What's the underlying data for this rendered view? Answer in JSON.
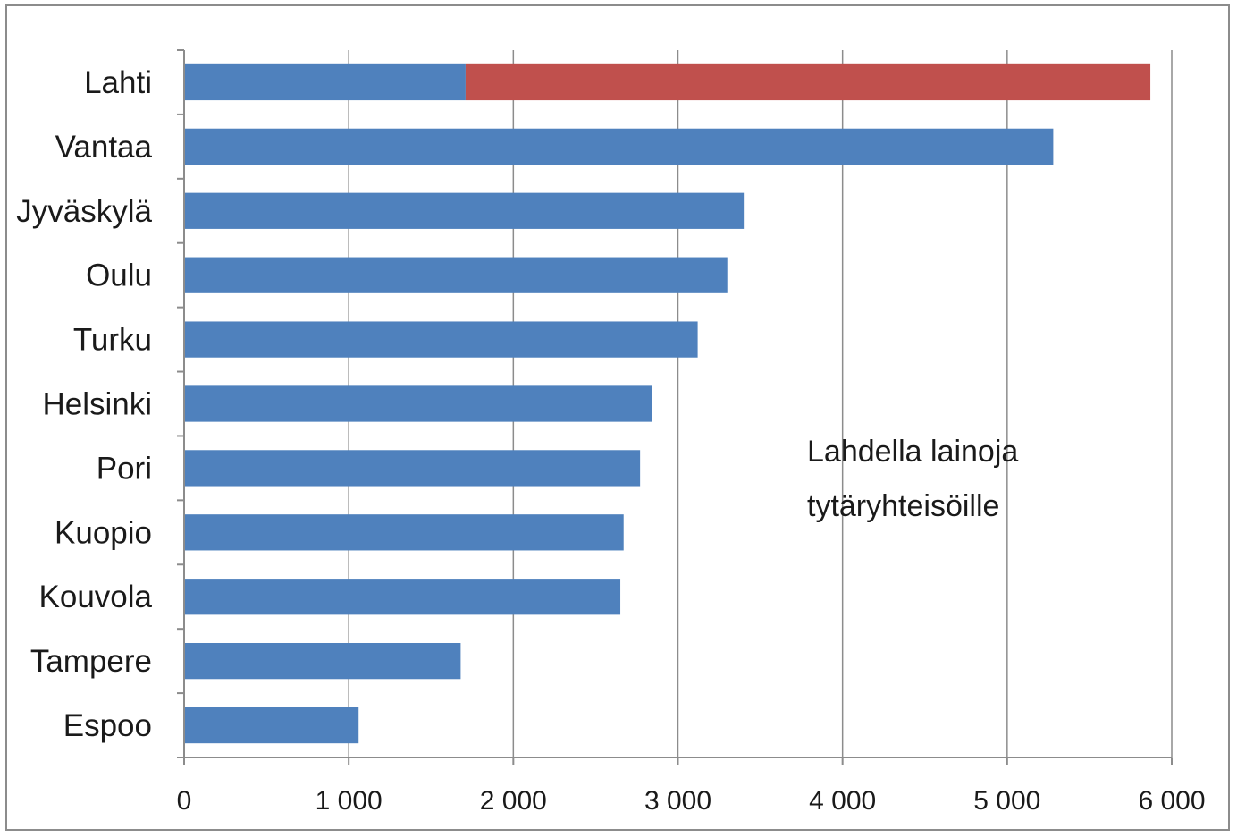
{
  "chart_data": {
    "type": "bar",
    "orientation": "horizontal",
    "stacked": true,
    "categories": [
      "Lahti",
      "Vantaa",
      "Jyväskylä",
      "Oulu",
      "Turku",
      "Helsinki",
      "Pori",
      "Kuopio",
      "Kouvola",
      "Tampere",
      "Espoo"
    ],
    "series": [
      {
        "values": [
          1710,
          5280,
          3400,
          3300,
          3120,
          2840,
          2770,
          2670,
          2650,
          1680,
          1060
        ],
        "color": "#4f81bd"
      },
      {
        "values": [
          4160,
          0,
          0,
          0,
          0,
          0,
          0,
          0,
          0,
          0,
          0
        ],
        "color": "#c0504d"
      }
    ],
    "xlim": [
      0,
      6000
    ],
    "xticks": [
      0,
      1000,
      2000,
      3000,
      4000,
      5000,
      6000
    ],
    "xtick_labels": [
      "0",
      "1 000",
      "2 000",
      "3 000",
      "4 000",
      "5 000",
      "6 000"
    ],
    "grid": "vertical",
    "legend": "none",
    "annotation": {
      "lines": [
        "Lahdella lainoja",
        "tytäryhteisöille"
      ]
    }
  }
}
